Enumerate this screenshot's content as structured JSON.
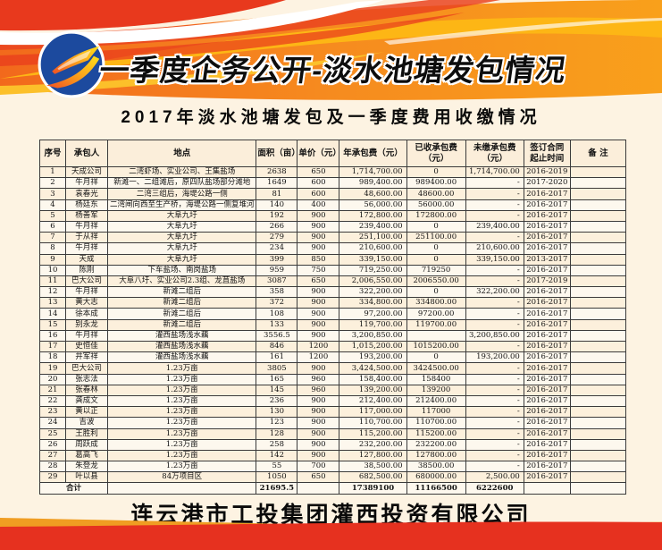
{
  "banner": {
    "title": "一季度企务公开-淡水池塘发包情况",
    "logo": "blue-circle-orange-swoosh"
  },
  "subtitle": "2017年淡水池塘发包及一季度费用收缴情况",
  "table": {
    "columns": [
      "序号",
      "承包人",
      "地点",
      "面积（亩）",
      "单价（元）",
      "年承包费（元）",
      "已收承包费\n（元）",
      "未缴承包费\n（元）",
      "签订合同\n起止时间",
      "备 注"
    ],
    "rows": [
      [
        "1",
        "天成公司",
        "二湾虾场、实业公司、王集盐场",
        "2638",
        "650",
        "1,714,700.00",
        "0",
        "1,714,700.00",
        "2016-2019",
        ""
      ],
      [
        "2",
        "牛月祥",
        "新滩一、二组滩后，原四队盐场部分滩地",
        "1649",
        "600",
        "989,400.00",
        "989400.00",
        "-",
        "2017-2020",
        ""
      ],
      [
        "3",
        "袁春光",
        "二湾三组后，海堤公路一侧",
        "81",
        "600",
        "48,600.00",
        "48600.00",
        "-",
        "2016-2017",
        ""
      ],
      [
        "4",
        "杨廷东",
        "二湾闸向西至生产桥，海堤公路一侧复堆河",
        "140",
        "400",
        "56,000.00",
        "56000.00",
        "-",
        "2016-2017",
        ""
      ],
      [
        "5",
        "杨善军",
        "大阜九圩",
        "192",
        "900",
        "172,800.00",
        "172800.00",
        "-",
        "2016-2017",
        ""
      ],
      [
        "6",
        "牛月祥",
        "大阜九圩",
        "266",
        "900",
        "239,400.00",
        "0",
        "239,400.00",
        "2016-2017",
        ""
      ],
      [
        "7",
        "于从祥",
        "大阜九圩",
        "279",
        "900",
        "251,100.00",
        "251100.00",
        "-",
        "2016-2017",
        ""
      ],
      [
        "8",
        "牛月祥",
        "大阜九圩",
        "234",
        "900",
        "210,600.00",
        "0",
        "210,600.00",
        "2016-2017",
        ""
      ],
      [
        "9",
        "天成",
        "大阜九圩",
        "399",
        "850",
        "339,150.00",
        "0",
        "339,150.00",
        "2013-2017",
        ""
      ],
      [
        "10",
        "陈刚",
        "下车盐场、南岗盐场",
        "959",
        "750",
        "719,250.00",
        "719250",
        "-",
        "2016-2017",
        ""
      ],
      [
        "11",
        "巴大公司",
        "大阜八圩、实业公司2.3组、龙苴盐场",
        "3087",
        "650",
        "2,006,550.00",
        "2006550.00",
        "-",
        "2017-2019",
        ""
      ],
      [
        "12",
        "牛月祥",
        "新滩二组后",
        "358",
        "900",
        "322,200.00",
        "0",
        "322,200.00",
        "2016-2017",
        ""
      ],
      [
        "13",
        "黄大志",
        "新滩二组后",
        "372",
        "900",
        "334,800.00",
        "334800.00",
        "-",
        "2016-2017",
        ""
      ],
      [
        "14",
        "徐本成",
        "新滩二组后",
        "108",
        "900",
        "97,200.00",
        "97200.00",
        "-",
        "2016-2017",
        ""
      ],
      [
        "15",
        "别永龙",
        "新滩二组后",
        "133",
        "900",
        "119,700.00",
        "119700.00",
        "-",
        "2016-2017",
        ""
      ],
      [
        "16",
        "牛月祥",
        "灌西盐场浅水藕",
        "3556.5",
        "900",
        "3,200,850.00",
        "",
        "3,200,850.00",
        "2016-2017",
        ""
      ],
      [
        "17",
        "史恒佳",
        "灌西盐场浅水藕",
        "846",
        "1200",
        "1,015,200.00",
        "1015200.00",
        "-",
        "2016-2017",
        ""
      ],
      [
        "18",
        "井军祥",
        "灌西盐场浅水藕",
        "161",
        "1200",
        "193,200.00",
        "0",
        "193,200.00",
        "2016-2017",
        ""
      ],
      [
        "19",
        "巴大公司",
        "1.23万亩",
        "3805",
        "900",
        "3,424,500.00",
        "3424500.00",
        "-",
        "2016-2017",
        ""
      ],
      [
        "20",
        "张志法",
        "1.23万亩",
        "165",
        "960",
        "158,400.00",
        "158400",
        "-",
        "2016-2017",
        ""
      ],
      [
        "21",
        "张春林",
        "1.23万亩",
        "145",
        "960",
        "139,200.00",
        "139200",
        "-",
        "2016-2017",
        ""
      ],
      [
        "22",
        "龚成文",
        "1.23万亩",
        "236",
        "900",
        "212,400.00",
        "212400.00",
        "-",
        "2016-2017",
        ""
      ],
      [
        "23",
        "黄以正",
        "1.23万亩",
        "130",
        "900",
        "117,000.00",
        "117000",
        "-",
        "2016-2017",
        ""
      ],
      [
        "24",
        "吉波",
        "1.23万亩",
        "123",
        "900",
        "110,700.00",
        "110700.00",
        "-",
        "2016-2017",
        ""
      ],
      [
        "25",
        "王胜利",
        "1.23万亩",
        "128",
        "900",
        "115,200.00",
        "115200.00",
        "-",
        "2016-2017",
        ""
      ],
      [
        "26",
        "周跃成",
        "1.23万亩",
        "258",
        "900",
        "232,200.00",
        "232200.00",
        "-",
        "2016-2017",
        ""
      ],
      [
        "27",
        "葛高飞",
        "1.23万亩",
        "142",
        "900",
        "127,800.00",
        "127800.00",
        "-",
        "2016-2017",
        ""
      ],
      [
        "28",
        "朱登龙",
        "1.23万亩",
        "55",
        "700",
        "38,500.00",
        "38500.00",
        "-",
        "2016-2017",
        ""
      ],
      [
        "29",
        "叶以县",
        "84万项目区",
        "1050",
        "650",
        "682,500.00",
        "680000.00",
        "2,500.00",
        "2016-2017",
        ""
      ]
    ],
    "total_row": [
      "合计",
      "",
      "21695.5",
      "",
      "17389100",
      "11166500",
      "6222600",
      "",
      ""
    ]
  },
  "footer": {
    "company": "连云港市工投集团灌西投资有限公司"
  },
  "colors": {
    "background": "#fdf3e2",
    "banner_orange": "#f68b1f",
    "banner_red": "#e8391d",
    "banner_yellow": "#fdb615",
    "logo_blue": "#1c4a9e",
    "bottom_red": "#e6311f",
    "bottom_gold": "#f09d22"
  }
}
